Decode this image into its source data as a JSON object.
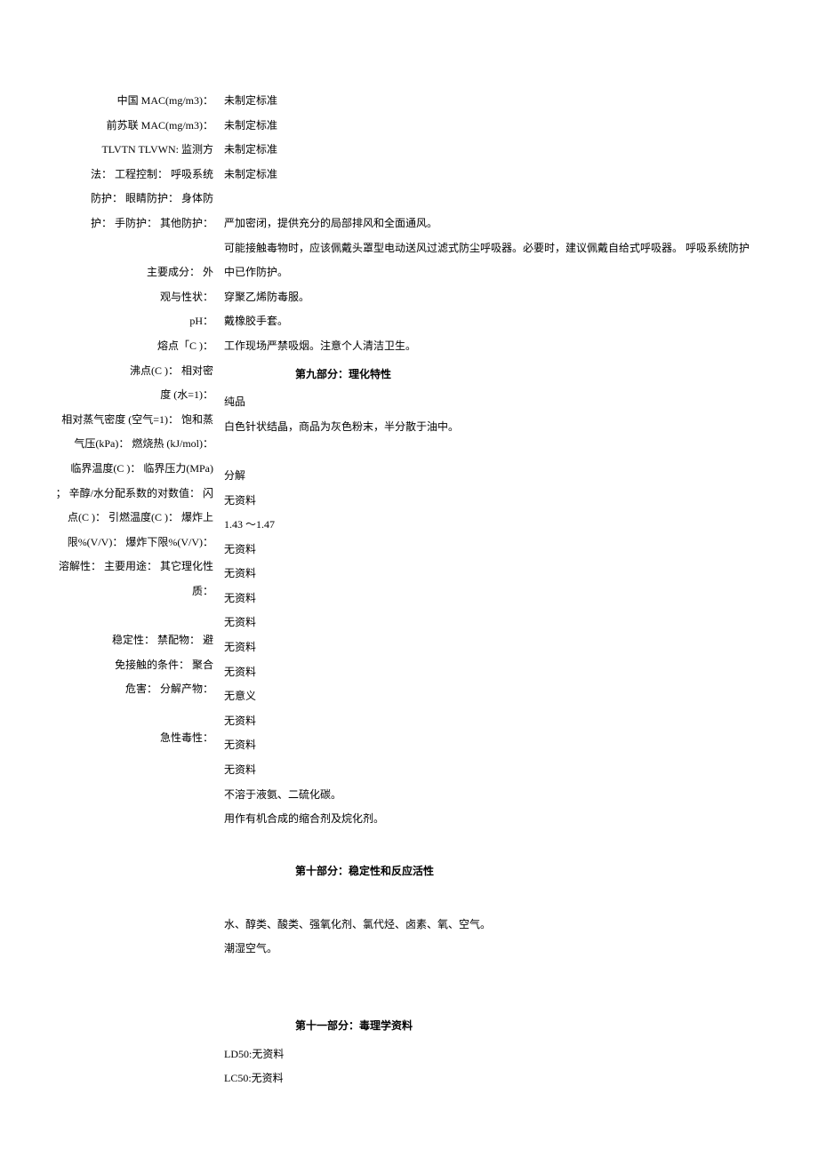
{
  "labels": {
    "china_mac": "中国 MAC(mg/m3)：",
    "ussr_mac": "前苏联 MAC(mg/m3)：",
    "tlv": "TLVTN TLVWN: 监测方",
    "method": "法： 工程控制： 呼吸系统",
    "protection": "防护： 眼睛防护： 身体防",
    "hand": "护： 手防护： 其他防护：",
    "main_ingredient": "主要成分： 外",
    "appearance": "观与性状：",
    "ph": "pH：",
    "melting": "熔点「C )：",
    "boiling": "沸点(C )： 相对密",
    "density": "度 (水=1)：",
    "vapor": "相对蒸气密度 (空气=1)： 饱和蒸",
    "pressure": "气压(kPa)： 燃烧热 (kJ/mol)：",
    "critical_temp": "临界温度(C )： 临界压力(MPa)",
    "partition": "； 辛醇/水分配系数的对数值： 闪",
    "flash": "点(C )： 引燃温度(C )： 爆炸上",
    "explosion": "限%(V/V)： 爆炸下限%(V/V)：",
    "solubility": "溶解性： 主要用途： 其它理化性",
    "other": "质：",
    "stability": "稳定性： 禁配物： 避",
    "avoid": "免接触的条件： 聚合",
    "polymer": "危害： 分解产物：",
    "acute": "急性毒性："
  },
  "values": {
    "v1": "未制定标准",
    "v2": "未制定标准",
    "v3": "未制定标准",
    "v4": "未制定标准",
    "v5": "严加密闭，提供充分的局部排风和全面通风。",
    "v6": "可能接触毒物时，应该佩戴头罩型电动送风过滤式防尘呼吸器。必要时，建议佩戴自给式呼吸器。 呼吸系统防护",
    "v7": "中已作防护。",
    "v8": "穿聚乙烯防毒服。",
    "v9": "戴橡胶手套。",
    "v10": "工作现场严禁吸烟。注意个人清洁卫生。",
    "v11": "纯品",
    "v12": "白色针状结晶，商品为灰色粉末，半分散于油中。",
    "v13": "分解",
    "v14": "无资料",
    "v15": "1.43 ～1.47",
    "v16": "无资料",
    "v17": "无资料",
    "v18": "无资料",
    "v19": "无资料",
    "v20": "无资料",
    "v21": "无资料",
    "v22": "无意义",
    "v23": "无资料",
    "v24": "无资料",
    "v25": "无资料",
    "v26": "不溶于液氨、二硫化碳。",
    "v27": "用作有机合成的缩合剂及烷化剂。",
    "v28": "水、醇类、酸类、强氧化剂、氯代烃、卤素、氧、空气。",
    "v29": "潮湿空气。",
    "v30": "LD50:无资料",
    "v31": "LC50:无资料"
  },
  "sections": {
    "s9": "第九部分：理化特性",
    "s10": "第十部分：稳定性和反应活性",
    "s11": "第十一部分：毒理学资料"
  }
}
